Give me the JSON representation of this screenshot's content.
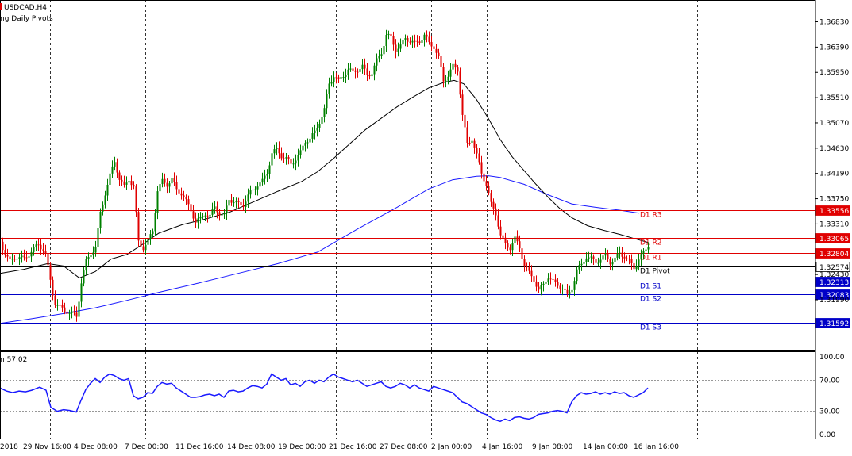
{
  "header": {
    "symbol": "USDCAD,H4",
    "indicator": "ng Daily Pivots"
  },
  "subwindow": {
    "label": "n 57.02",
    "scale": [
      "100.00",
      "70.00",
      "30.00",
      "0.00"
    ],
    "levels": [
      70,
      30
    ],
    "value": 57.02
  },
  "colors": {
    "bull": "#008000",
    "bear": "#e00000",
    "ma_fast": "#000000",
    "ma_slow": "#1a1aff",
    "indicator": "#1a1aff",
    "resistance": "#e00000",
    "support": "#0000c8",
    "pivot": "#000000"
  },
  "chart_data": {
    "type": "candlestick",
    "price_axis_ticks": [
      "1.36830",
      "1.36390",
      "1.35950",
      "1.35510",
      "1.35070",
      "1.34630",
      "1.34190",
      "1.33750",
      "1.33310",
      "1.32430",
      "1.31990"
    ],
    "ylim": [
      1.3112,
      1.3721
    ],
    "time_axis_ticks": [
      "2018",
      "29 Nov 16:00",
      "4 Dec 08:00",
      "7 Dec 00:00",
      "11 Dec 16:00",
      "14 Dec 08:00",
      "19 Dec 00:00",
      "21 Dec 16:00",
      "27 Dec 08:00",
      "2 Jan 00:00",
      "4 Jan 16:00",
      "9 Jan 08:00",
      "14 Jan 00:00",
      "16 Jan 16:00"
    ],
    "pivots": [
      {
        "label": "D1 R3",
        "price": 1.33556,
        "tag": "1.33556",
        "kind": "resistance"
      },
      {
        "label": "D1 R2",
        "price": 1.33065,
        "tag": "1.33065",
        "kind": "resistance"
      },
      {
        "label": "D1 R1",
        "price": 1.32804,
        "tag": "1.32804",
        "kind": "resistance"
      },
      {
        "label": "D1 Pivot",
        "price": 1.32574,
        "tag": "1.32574",
        "kind": "pivot"
      },
      {
        "label": "D1 S1",
        "price": 1.32313,
        "tag": "1.32313",
        "kind": "support"
      },
      {
        "label": "D1 S2",
        "price": 1.32083,
        "tag": "1.32083",
        "kind": "support"
      },
      {
        "label": "D1 S3",
        "price": 1.31592,
        "tag": "1.31592",
        "kind": "support"
      }
    ],
    "price_path": [
      [
        0,
        1.33
      ],
      [
        6,
        1.328
      ],
      [
        12,
        1.3265
      ],
      [
        20,
        1.3275
      ],
      [
        30,
        1.327
      ],
      [
        40,
        1.3285
      ],
      [
        48,
        1.3295
      ],
      [
        56,
        1.3285
      ],
      [
        62,
        1.324
      ],
      [
        68,
        1.3195
      ],
      [
        75,
        1.3185
      ],
      [
        82,
        1.318
      ],
      [
        90,
        1.3175
      ],
      [
        96,
        1.317
      ],
      [
        102,
        1.323
      ],
      [
        108,
        1.3265
      ],
      [
        114,
        1.328
      ],
      [
        120,
        1.329
      ],
      [
        126,
        1.335
      ],
      [
        132,
        1.3385
      ],
      [
        138,
        1.3415
      ],
      [
        144,
        1.344
      ],
      [
        150,
        1.341
      ],
      [
        156,
        1.3395
      ],
      [
        162,
        1.341
      ],
      [
        168,
        1.3395
      ],
      [
        174,
        1.33
      ],
      [
        180,
        1.329
      ],
      [
        186,
        1.33
      ],
      [
        192,
        1.332
      ],
      [
        198,
        1.339
      ],
      [
        204,
        1.3405
      ],
      [
        210,
        1.34
      ],
      [
        216,
        1.341
      ],
      [
        222,
        1.339
      ],
      [
        228,
        1.3385
      ],
      [
        234,
        1.337
      ],
      [
        240,
        1.3355
      ],
      [
        246,
        1.3335
      ],
      [
        252,
        1.334
      ],
      [
        258,
        1.335
      ],
      [
        264,
        1.3345
      ],
      [
        270,
        1.336
      ],
      [
        276,
        1.335
      ],
      [
        282,
        1.3345
      ],
      [
        288,
        1.3375
      ],
      [
        294,
        1.337
      ],
      [
        300,
        1.3365
      ],
      [
        306,
        1.3365
      ],
      [
        312,
        1.338
      ],
      [
        318,
        1.339
      ],
      [
        324,
        1.34
      ],
      [
        330,
        1.3405
      ],
      [
        336,
        1.342
      ],
      [
        342,
        1.3455
      ],
      [
        348,
        1.346
      ],
      [
        354,
        1.345
      ],
      [
        360,
        1.3445
      ],
      [
        366,
        1.3435
      ],
      [
        372,
        1.3445
      ],
      [
        378,
        1.3455
      ],
      [
        384,
        1.3475
      ],
      [
        390,
        1.348
      ],
      [
        396,
        1.349
      ],
      [
        402,
        1.351
      ],
      [
        408,
        1.353
      ],
      [
        414,
        1.3575
      ],
      [
        420,
        1.359
      ],
      [
        426,
        1.358
      ],
      [
        432,
        1.359
      ],
      [
        438,
        1.36
      ],
      [
        444,
        1.3595
      ],
      [
        450,
        1.36
      ],
      [
        456,
        1.3605
      ],
      [
        462,
        1.359
      ],
      [
        468,
        1.3595
      ],
      [
        474,
        1.3615
      ],
      [
        480,
        1.363
      ],
      [
        486,
        1.366
      ],
      [
        492,
        1.3655
      ],
      [
        498,
        1.3635
      ],
      [
        504,
        1.364
      ],
      [
        510,
        1.3655
      ],
      [
        516,
        1.365
      ],
      [
        522,
        1.3645
      ],
      [
        528,
        1.365
      ],
      [
        534,
        1.366
      ],
      [
        540,
        1.3645
      ],
      [
        546,
        1.364
      ],
      [
        552,
        1.362
      ],
      [
        558,
        1.358
      ],
      [
        564,
        1.359
      ],
      [
        570,
        1.3605
      ],
      [
        576,
        1.36
      ],
      [
        582,
        1.352
      ],
      [
        588,
        1.347
      ],
      [
        594,
        1.348
      ],
      [
        600,
        1.345
      ],
      [
        606,
        1.342
      ],
      [
        612,
        1.34
      ],
      [
        618,
        1.3365
      ],
      [
        624,
        1.335
      ],
      [
        630,
        1.331
      ],
      [
        636,
        1.3295
      ],
      [
        642,
        1.329
      ],
      [
        648,
        1.3305
      ],
      [
        654,
        1.329
      ],
      [
        660,
        1.326
      ],
      [
        666,
        1.3245
      ],
      [
        672,
        1.3235
      ],
      [
        678,
        1.3215
      ],
      [
        684,
        1.3225
      ],
      [
        690,
        1.324
      ],
      [
        696,
        1.323
      ],
      [
        702,
        1.3225
      ],
      [
        708,
        1.322
      ],
      [
        714,
        1.3205
      ],
      [
        720,
        1.322
      ],
      [
        726,
        1.325
      ],
      [
        732,
        1.326
      ],
      [
        738,
        1.3275
      ],
      [
        744,
        1.327
      ],
      [
        750,
        1.3265
      ],
      [
        756,
        1.327
      ],
      [
        762,
        1.3275
      ],
      [
        768,
        1.3265
      ],
      [
        774,
        1.327
      ],
      [
        780,
        1.328
      ],
      [
        786,
        1.3275
      ],
      [
        792,
        1.3265
      ],
      [
        798,
        1.3255
      ],
      [
        804,
        1.327
      ],
      [
        810,
        1.328
      ],
      [
        816,
        1.3295
      ]
    ],
    "ma_fast": [
      [
        0,
        1.3245
      ],
      [
        30,
        1.3252
      ],
      [
        60,
        1.3262
      ],
      [
        80,
        1.3258
      ],
      [
        100,
        1.3237
      ],
      [
        120,
        1.3248
      ],
      [
        140,
        1.327
      ],
      [
        160,
        1.3278
      ],
      [
        180,
        1.3296
      ],
      [
        200,
        1.3315
      ],
      [
        230,
        1.333
      ],
      [
        260,
        1.334
      ],
      [
        290,
        1.3352
      ],
      [
        320,
        1.337
      ],
      [
        350,
        1.3388
      ],
      [
        380,
        1.3405
      ],
      [
        400,
        1.3422
      ],
      [
        420,
        1.3445
      ],
      [
        440,
        1.347
      ],
      [
        460,
        1.3495
      ],
      [
        480,
        1.3515
      ],
      [
        500,
        1.3535
      ],
      [
        520,
        1.3552
      ],
      [
        540,
        1.3568
      ],
      [
        560,
        1.3578
      ],
      [
        572,
        1.3581
      ],
      [
        584,
        1.3575
      ],
      [
        600,
        1.3548
      ],
      [
        615,
        1.3515
      ],
      [
        630,
        1.3478
      ],
      [
        645,
        1.3448
      ],
      [
        660,
        1.3424
      ],
      [
        675,
        1.34
      ],
      [
        690,
        1.3378
      ],
      [
        705,
        1.3358
      ],
      [
        720,
        1.3342
      ],
      [
        740,
        1.3328
      ],
      [
        760,
        1.332
      ],
      [
        780,
        1.3313
      ],
      [
        800,
        1.3305
      ],
      [
        816,
        1.3299
      ]
    ],
    "ma_slow": [
      [
        0,
        1.3158
      ],
      [
        40,
        1.3166
      ],
      [
        80,
        1.3175
      ],
      [
        120,
        1.3185
      ],
      [
        160,
        1.3198
      ],
      [
        200,
        1.3212
      ],
      [
        250,
        1.3228
      ],
      [
        300,
        1.3245
      ],
      [
        350,
        1.3262
      ],
      [
        400,
        1.3282
      ],
      [
        450,
        1.3322
      ],
      [
        500,
        1.336
      ],
      [
        540,
        1.3392
      ],
      [
        570,
        1.3408
      ],
      [
        600,
        1.3414
      ],
      [
        615,
        1.3415
      ],
      [
        630,
        1.3412
      ],
      [
        660,
        1.34
      ],
      [
        690,
        1.3382
      ],
      [
        720,
        1.3366
      ],
      [
        750,
        1.336
      ],
      [
        780,
        1.3355
      ],
      [
        805,
        1.335
      ]
    ],
    "rsi_path": [
      [
        0,
        60
      ],
      [
        8,
        56
      ],
      [
        16,
        54
      ],
      [
        24,
        56
      ],
      [
        32,
        55
      ],
      [
        40,
        57
      ],
      [
        50,
        61
      ],
      [
        58,
        57
      ],
      [
        64,
        35
      ],
      [
        72,
        30
      ],
      [
        80,
        32
      ],
      [
        88,
        31
      ],
      [
        96,
        29
      ],
      [
        102,
        44
      ],
      [
        108,
        58
      ],
      [
        114,
        66
      ],
      [
        120,
        72
      ],
      [
        126,
        67
      ],
      [
        132,
        74
      ],
      [
        138,
        78
      ],
      [
        144,
        76
      ],
      [
        150,
        72
      ],
      [
        156,
        70
      ],
      [
        162,
        72
      ],
      [
        168,
        50
      ],
      [
        174,
        46
      ],
      [
        180,
        48
      ],
      [
        186,
        54
      ],
      [
        192,
        53
      ],
      [
        198,
        62
      ],
      [
        204,
        67
      ],
      [
        210,
        65
      ],
      [
        216,
        66
      ],
      [
        222,
        60
      ],
      [
        228,
        56
      ],
      [
        234,
        52
      ],
      [
        240,
        48
      ],
      [
        246,
        48
      ],
      [
        252,
        49
      ],
      [
        258,
        51
      ],
      [
        264,
        52
      ],
      [
        270,
        50
      ],
      [
        276,
        52
      ],
      [
        282,
        48
      ],
      [
        288,
        56
      ],
      [
        294,
        57
      ],
      [
        300,
        55
      ],
      [
        306,
        56
      ],
      [
        312,
        60
      ],
      [
        318,
        63
      ],
      [
        324,
        62
      ],
      [
        330,
        60
      ],
      [
        336,
        65
      ],
      [
        342,
        78
      ],
      [
        348,
        74
      ],
      [
        354,
        70
      ],
      [
        360,
        72
      ],
      [
        366,
        64
      ],
      [
        372,
        66
      ],
      [
        378,
        62
      ],
      [
        384,
        68
      ],
      [
        390,
        70
      ],
      [
        396,
        66
      ],
      [
        402,
        70
      ],
      [
        408,
        68
      ],
      [
        414,
        74
      ],
      [
        420,
        78
      ],
      [
        426,
        74
      ],
      [
        432,
        72
      ],
      [
        438,
        70
      ],
      [
        444,
        68
      ],
      [
        450,
        70
      ],
      [
        456,
        66
      ],
      [
        462,
        62
      ],
      [
        468,
        64
      ],
      [
        474,
        66
      ],
      [
        480,
        68
      ],
      [
        486,
        62
      ],
      [
        492,
        60
      ],
      [
        498,
        62
      ],
      [
        504,
        66
      ],
      [
        510,
        64
      ],
      [
        516,
        60
      ],
      [
        522,
        64
      ],
      [
        528,
        60
      ],
      [
        534,
        58
      ],
      [
        540,
        56
      ],
      [
        546,
        62
      ],
      [
        552,
        60
      ],
      [
        558,
        58
      ],
      [
        564,
        56
      ],
      [
        570,
        54
      ],
      [
        576,
        48
      ],
      [
        582,
        42
      ],
      [
        588,
        40
      ],
      [
        594,
        36
      ],
      [
        600,
        32
      ],
      [
        606,
        28
      ],
      [
        612,
        26
      ],
      [
        618,
        22
      ],
      [
        624,
        19
      ],
      [
        630,
        17
      ],
      [
        636,
        20
      ],
      [
        642,
        18
      ],
      [
        648,
        22
      ],
      [
        654,
        23
      ],
      [
        660,
        21
      ],
      [
        666,
        20
      ],
      [
        672,
        22
      ],
      [
        678,
        26
      ],
      [
        684,
        27
      ],
      [
        690,
        28
      ],
      [
        696,
        30
      ],
      [
        702,
        31
      ],
      [
        708,
        30
      ],
      [
        714,
        28
      ],
      [
        720,
        42
      ],
      [
        726,
        50
      ],
      [
        732,
        54
      ],
      [
        738,
        52
      ],
      [
        744,
        53
      ],
      [
        750,
        55
      ],
      [
        756,
        52
      ],
      [
        762,
        54
      ],
      [
        768,
        52
      ],
      [
        774,
        55
      ],
      [
        780,
        53
      ],
      [
        786,
        54
      ],
      [
        792,
        50
      ],
      [
        798,
        48
      ],
      [
        804,
        51
      ],
      [
        810,
        54
      ],
      [
        816,
        60
      ]
    ]
  }
}
